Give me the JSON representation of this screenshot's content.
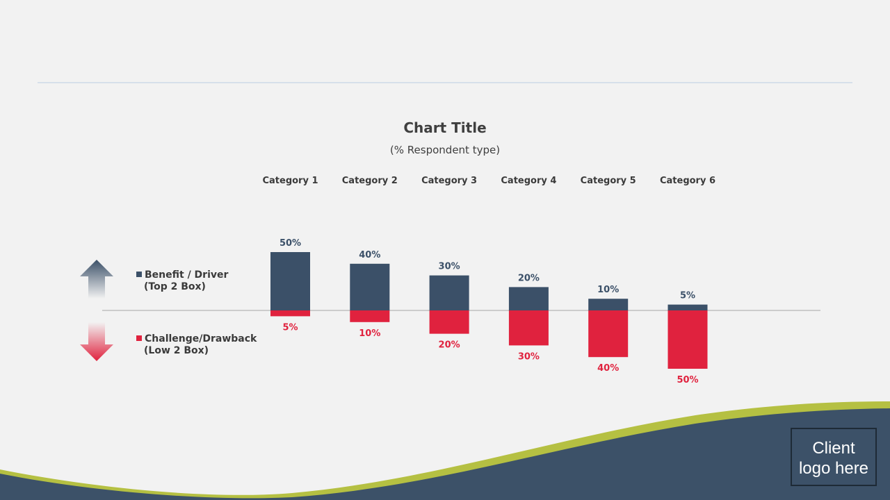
{
  "slide": {
    "client_logo_line1": "Client",
    "client_logo_line2": "logo here"
  },
  "legend": {
    "benefit_line1": "Benefit / Driver",
    "benefit_line2": "(Top 2 Box)",
    "challenge_line1": "Challenge/Drawback",
    "challenge_line2": "(Low 2 Box)",
    "up_arrow_icon": "up-arrow-icon",
    "down_arrow_icon": "down-arrow-icon"
  },
  "colors": {
    "benefit": "#3b5068",
    "challenge": "#e0223e",
    "accent_green": "#b5c042",
    "footer_navy": "#3c5168"
  },
  "chart_data": {
    "type": "bar",
    "title": "Chart Title",
    "subtitle": "(% Respondent type)",
    "categories": [
      "Category 1",
      "Category 2",
      "Category 3",
      "Category 4",
      "Category 5",
      "Category 6"
    ],
    "series": [
      {
        "name": "Benefit / Driver (Top 2 Box)",
        "values": [
          50,
          40,
          30,
          20,
          10,
          5
        ],
        "labels": [
          "50%",
          "40%",
          "30%",
          "20%",
          "10%",
          "5%"
        ]
      },
      {
        "name": "Challenge/Drawback (Low 2 Box)",
        "values": [
          -5,
          -10,
          -20,
          -30,
          -40,
          -50
        ],
        "labels": [
          "5%",
          "10%",
          "20%",
          "30%",
          "40%",
          "50%"
        ]
      }
    ],
    "ylim": [
      -50,
      50
    ],
    "xlabel": "",
    "ylabel": "",
    "legend_position": "left"
  }
}
